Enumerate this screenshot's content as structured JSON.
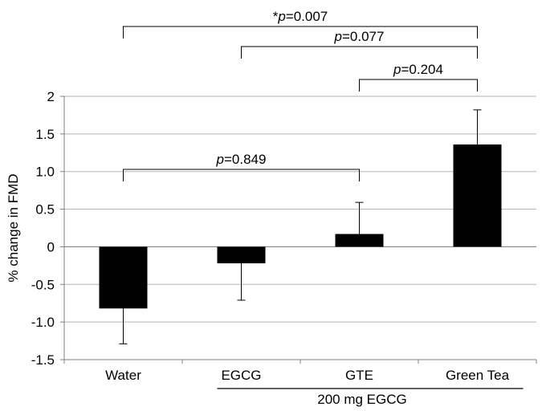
{
  "chart_data": {
    "type": "bar",
    "categories": [
      "Water",
      "EGCG",
      "GTE",
      "Green Tea"
    ],
    "values": [
      -0.82,
      -0.22,
      0.17,
      1.36
    ],
    "error_bars": [
      0.47,
      0.49,
      0.42,
      0.46
    ],
    "ylabel": "% change in FMD",
    "xlabel": "",
    "ylim": [
      -1.5,
      2
    ],
    "yticks": [
      -1.5,
      -1.0,
      -0.5,
      0,
      0.5,
      1.0,
      1.5,
      2
    ],
    "ytick_labels": [
      "-1.5",
      "-1.0",
      "-0.5",
      "0",
      "0.5",
      "1.0",
      "1.5",
      "2"
    ],
    "grid": true,
    "bar_color": "#000000",
    "group_label": "200 mg EGCG",
    "group_members": [
      "EGCG",
      "GTE",
      "Green Tea"
    ],
    "comparisons": [
      {
        "from": "Water",
        "to": "Green Tea",
        "prefix": "*",
        "p_symbol": "p",
        "value": "=0.007"
      },
      {
        "from": "EGCG",
        "to": "Green Tea",
        "prefix": "",
        "p_symbol": "p",
        "value": "=0.077"
      },
      {
        "from": "GTE",
        "to": "Green Tea",
        "prefix": "",
        "p_symbol": "p",
        "value": "=0.204"
      },
      {
        "from": "Water",
        "to": "GTE",
        "prefix": "",
        "p_symbol": "p",
        "value": "=0.849"
      }
    ]
  }
}
